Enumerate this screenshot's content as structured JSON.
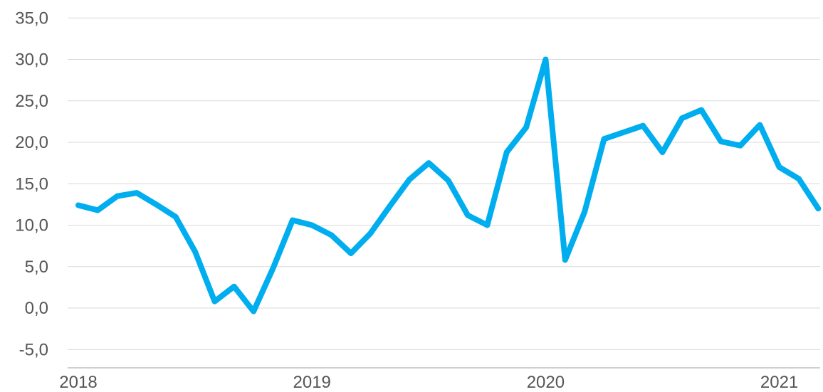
{
  "chart_data": {
    "type": "line",
    "title": "",
    "xlabel": "",
    "ylabel": "",
    "ylim": [
      -5,
      35
    ],
    "y_ticks": [
      "-5,0",
      "0,0",
      "5,0",
      "10,0",
      "15,0",
      "20,0",
      "25,0",
      "30,0",
      "35,0"
    ],
    "y_tick_values": [
      -5,
      0,
      5,
      10,
      15,
      20,
      25,
      30,
      35
    ],
    "x_tick_labels": [
      "2018",
      "2019",
      "2020",
      "2021"
    ],
    "x_tick_months": [
      "2018-01",
      "2019-01",
      "2020-01",
      "2021-01"
    ],
    "grid": true,
    "color": "#00aeef",
    "series": [
      {
        "months": [
          "2018-01",
          "2018-02",
          "2018-03",
          "2018-04",
          "2018-05",
          "2018-06",
          "2018-07",
          "2018-08",
          "2018-09",
          "2018-10",
          "2018-11",
          "2018-12",
          "2019-01",
          "2019-02",
          "2019-03",
          "2019-04",
          "2019-05",
          "2019-06",
          "2019-07",
          "2019-08",
          "2019-09",
          "2019-10",
          "2019-11",
          "2019-12",
          "2020-01",
          "2020-02",
          "2020-03",
          "2020-04",
          "2020-05",
          "2020-06",
          "2020-07",
          "2020-08",
          "2020-09",
          "2020-10",
          "2020-11",
          "2020-12",
          "2021-01",
          "2021-02",
          "2021-03"
        ],
        "values": [
          12.4,
          11.8,
          13.5,
          13.9,
          12.5,
          11.0,
          6.8,
          0.8,
          2.6,
          -0.4,
          4.8,
          10.6,
          10.0,
          8.8,
          6.6,
          9.0,
          12.3,
          15.5,
          17.5,
          15.4,
          11.2,
          10.0,
          18.8,
          21.8,
          30.0,
          5.8,
          11.6,
          20.4,
          21.2,
          22.0,
          18.8,
          22.9,
          23.9,
          20.1,
          19.6,
          22.1,
          17.0,
          15.6,
          12.0
        ]
      }
    ]
  }
}
